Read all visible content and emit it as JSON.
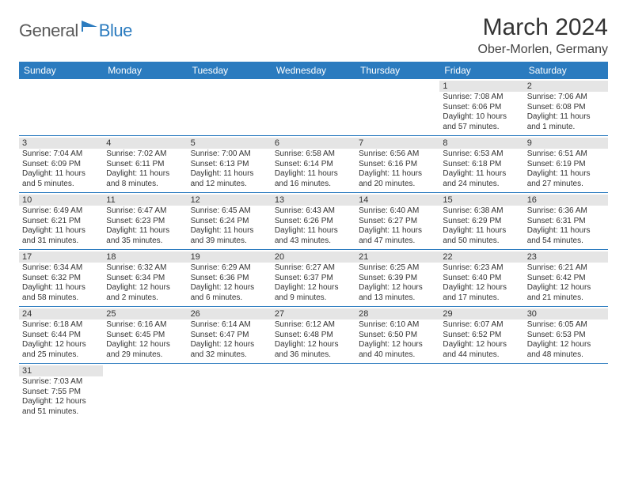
{
  "logo": {
    "part1": "General",
    "part2": "Blue"
  },
  "title": "March 2024",
  "location": "Ober-Morlen, Germany",
  "colors": {
    "brand": "#2b7bbf",
    "header_bg": "#2b7bbf",
    "header_text": "#ffffff",
    "daynum_bg": "#e5e5e5",
    "text": "#333333",
    "row_border": "#2b7bbf"
  },
  "day_headers": [
    "Sunday",
    "Monday",
    "Tuesday",
    "Wednesday",
    "Thursday",
    "Friday",
    "Saturday"
  ],
  "weeks": [
    [
      null,
      null,
      null,
      null,
      null,
      {
        "n": "1",
        "l1": "Sunrise: 7:08 AM",
        "l2": "Sunset: 6:06 PM",
        "l3": "Daylight: 10 hours",
        "l4": "and 57 minutes."
      },
      {
        "n": "2",
        "l1": "Sunrise: 7:06 AM",
        "l2": "Sunset: 6:08 PM",
        "l3": "Daylight: 11 hours",
        "l4": "and 1 minute."
      }
    ],
    [
      {
        "n": "3",
        "l1": "Sunrise: 7:04 AM",
        "l2": "Sunset: 6:09 PM",
        "l3": "Daylight: 11 hours",
        "l4": "and 5 minutes."
      },
      {
        "n": "4",
        "l1": "Sunrise: 7:02 AM",
        "l2": "Sunset: 6:11 PM",
        "l3": "Daylight: 11 hours",
        "l4": "and 8 minutes."
      },
      {
        "n": "5",
        "l1": "Sunrise: 7:00 AM",
        "l2": "Sunset: 6:13 PM",
        "l3": "Daylight: 11 hours",
        "l4": "and 12 minutes."
      },
      {
        "n": "6",
        "l1": "Sunrise: 6:58 AM",
        "l2": "Sunset: 6:14 PM",
        "l3": "Daylight: 11 hours",
        "l4": "and 16 minutes."
      },
      {
        "n": "7",
        "l1": "Sunrise: 6:56 AM",
        "l2": "Sunset: 6:16 PM",
        "l3": "Daylight: 11 hours",
        "l4": "and 20 minutes."
      },
      {
        "n": "8",
        "l1": "Sunrise: 6:53 AM",
        "l2": "Sunset: 6:18 PM",
        "l3": "Daylight: 11 hours",
        "l4": "and 24 minutes."
      },
      {
        "n": "9",
        "l1": "Sunrise: 6:51 AM",
        "l2": "Sunset: 6:19 PM",
        "l3": "Daylight: 11 hours",
        "l4": "and 27 minutes."
      }
    ],
    [
      {
        "n": "10",
        "l1": "Sunrise: 6:49 AM",
        "l2": "Sunset: 6:21 PM",
        "l3": "Daylight: 11 hours",
        "l4": "and 31 minutes."
      },
      {
        "n": "11",
        "l1": "Sunrise: 6:47 AM",
        "l2": "Sunset: 6:23 PM",
        "l3": "Daylight: 11 hours",
        "l4": "and 35 minutes."
      },
      {
        "n": "12",
        "l1": "Sunrise: 6:45 AM",
        "l2": "Sunset: 6:24 PM",
        "l3": "Daylight: 11 hours",
        "l4": "and 39 minutes."
      },
      {
        "n": "13",
        "l1": "Sunrise: 6:43 AM",
        "l2": "Sunset: 6:26 PM",
        "l3": "Daylight: 11 hours",
        "l4": "and 43 minutes."
      },
      {
        "n": "14",
        "l1": "Sunrise: 6:40 AM",
        "l2": "Sunset: 6:27 PM",
        "l3": "Daylight: 11 hours",
        "l4": "and 47 minutes."
      },
      {
        "n": "15",
        "l1": "Sunrise: 6:38 AM",
        "l2": "Sunset: 6:29 PM",
        "l3": "Daylight: 11 hours",
        "l4": "and 50 minutes."
      },
      {
        "n": "16",
        "l1": "Sunrise: 6:36 AM",
        "l2": "Sunset: 6:31 PM",
        "l3": "Daylight: 11 hours",
        "l4": "and 54 minutes."
      }
    ],
    [
      {
        "n": "17",
        "l1": "Sunrise: 6:34 AM",
        "l2": "Sunset: 6:32 PM",
        "l3": "Daylight: 11 hours",
        "l4": "and 58 minutes."
      },
      {
        "n": "18",
        "l1": "Sunrise: 6:32 AM",
        "l2": "Sunset: 6:34 PM",
        "l3": "Daylight: 12 hours",
        "l4": "and 2 minutes."
      },
      {
        "n": "19",
        "l1": "Sunrise: 6:29 AM",
        "l2": "Sunset: 6:36 PM",
        "l3": "Daylight: 12 hours",
        "l4": "and 6 minutes."
      },
      {
        "n": "20",
        "l1": "Sunrise: 6:27 AM",
        "l2": "Sunset: 6:37 PM",
        "l3": "Daylight: 12 hours",
        "l4": "and 9 minutes."
      },
      {
        "n": "21",
        "l1": "Sunrise: 6:25 AM",
        "l2": "Sunset: 6:39 PM",
        "l3": "Daylight: 12 hours",
        "l4": "and 13 minutes."
      },
      {
        "n": "22",
        "l1": "Sunrise: 6:23 AM",
        "l2": "Sunset: 6:40 PM",
        "l3": "Daylight: 12 hours",
        "l4": "and 17 minutes."
      },
      {
        "n": "23",
        "l1": "Sunrise: 6:21 AM",
        "l2": "Sunset: 6:42 PM",
        "l3": "Daylight: 12 hours",
        "l4": "and 21 minutes."
      }
    ],
    [
      {
        "n": "24",
        "l1": "Sunrise: 6:18 AM",
        "l2": "Sunset: 6:44 PM",
        "l3": "Daylight: 12 hours",
        "l4": "and 25 minutes."
      },
      {
        "n": "25",
        "l1": "Sunrise: 6:16 AM",
        "l2": "Sunset: 6:45 PM",
        "l3": "Daylight: 12 hours",
        "l4": "and 29 minutes."
      },
      {
        "n": "26",
        "l1": "Sunrise: 6:14 AM",
        "l2": "Sunset: 6:47 PM",
        "l3": "Daylight: 12 hours",
        "l4": "and 32 minutes."
      },
      {
        "n": "27",
        "l1": "Sunrise: 6:12 AM",
        "l2": "Sunset: 6:48 PM",
        "l3": "Daylight: 12 hours",
        "l4": "and 36 minutes."
      },
      {
        "n": "28",
        "l1": "Sunrise: 6:10 AM",
        "l2": "Sunset: 6:50 PM",
        "l3": "Daylight: 12 hours",
        "l4": "and 40 minutes."
      },
      {
        "n": "29",
        "l1": "Sunrise: 6:07 AM",
        "l2": "Sunset: 6:52 PM",
        "l3": "Daylight: 12 hours",
        "l4": "and 44 minutes."
      },
      {
        "n": "30",
        "l1": "Sunrise: 6:05 AM",
        "l2": "Sunset: 6:53 PM",
        "l3": "Daylight: 12 hours",
        "l4": "and 48 minutes."
      }
    ],
    [
      {
        "n": "31",
        "l1": "Sunrise: 7:03 AM",
        "l2": "Sunset: 7:55 PM",
        "l3": "Daylight: 12 hours",
        "l4": "and 51 minutes."
      },
      null,
      null,
      null,
      null,
      null,
      null
    ]
  ]
}
